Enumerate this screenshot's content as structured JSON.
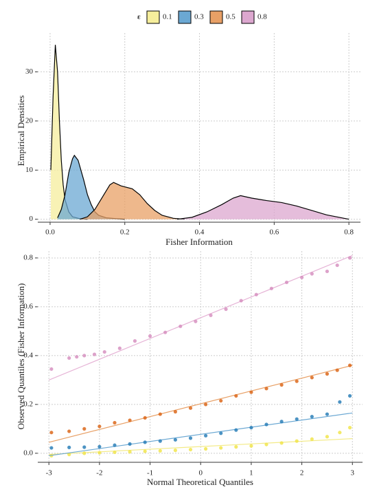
{
  "chart_data": [
    {
      "type": "density",
      "legend_title": "ε",
      "x_label": "Fisher Information",
      "y_label": "Empirical Densities",
      "xlim": [
        -0.033,
        0.831
      ],
      "ylim": [
        -0.6,
        37.9
      ],
      "xticks": [
        {
          "value": 0,
          "label": "0.0"
        },
        0.2,
        0.4,
        0.6,
        0.8
      ],
      "yticks": [
        0,
        10,
        20,
        30
      ],
      "grid": true,
      "series": [
        {
          "name": "0.1",
          "color": "#f6ee9c",
          "x": [
            0.002,
            0.008,
            0.014,
            0.02,
            0.025,
            0.03,
            0.035,
            0.04,
            0.05,
            0.06,
            0.08,
            0.1
          ],
          "values": [
            10,
            25,
            35.5,
            30,
            20,
            12,
            7,
            4,
            1.5,
            0.5,
            0.1,
            0
          ]
        },
        {
          "name": "0.3",
          "color": "#6ba8d3",
          "x": [
            0.02,
            0.03,
            0.04,
            0.05,
            0.06,
            0.065,
            0.075,
            0.09,
            0.1,
            0.11,
            0.12,
            0.13,
            0.15,
            0.18,
            0.2
          ],
          "values": [
            0.3,
            2,
            5,
            9.5,
            12.3,
            13,
            12,
            8,
            5,
            3,
            1.5,
            0.8,
            0.3,
            0.1,
            0
          ]
        },
        {
          "name": "0.5",
          "color": "#e8a066",
          "x": [
            0.08,
            0.1,
            0.12,
            0.14,
            0.16,
            0.17,
            0.19,
            0.22,
            0.24,
            0.26,
            0.28,
            0.3,
            0.33,
            0.36
          ],
          "values": [
            0,
            0.5,
            2,
            4.5,
            7,
            7.5,
            6.8,
            6.2,
            5,
            3.2,
            1.8,
            0.8,
            0.2,
            0
          ]
        },
        {
          "name": "0.8",
          "color": "#dca7cf",
          "x": [
            0.34,
            0.38,
            0.42,
            0.46,
            0.49,
            0.51,
            0.54,
            0.58,
            0.62,
            0.66,
            0.7,
            0.74,
            0.78,
            0.8
          ],
          "values": [
            0,
            0.4,
            1.5,
            3,
            4.3,
            4.8,
            4.3,
            3.8,
            3.4,
            2.7,
            1.8,
            0.9,
            0.3,
            0
          ]
        }
      ]
    },
    {
      "type": "qq",
      "x_label": "Normal Theoretical Quantiles",
      "y_label": "Observed Quantiles (Fisher Information)",
      "xlim": [
        -3.22,
        3.2
      ],
      "ylim": [
        -0.037,
        0.828
      ],
      "xticks": [
        -3,
        -2,
        -1,
        0,
        1,
        2,
        3
      ],
      "yticks": [
        {
          "value": 0,
          "label": "0.0"
        },
        0.2,
        0.4,
        0.6,
        0.8
      ],
      "grid": true,
      "series": [
        {
          "color": "#f0e442",
          "fit_color": "#f3ea86",
          "fit_x": [
            -3,
            3
          ],
          "fit": [
            -0.005,
            0.06
          ],
          "x": [
            -2.95,
            -2.6,
            -2.3,
            -2.0,
            -1.7,
            -1.4,
            -1.1,
            -0.8,
            -0.5,
            -0.2,
            0.1,
            0.4,
            0.7,
            1.0,
            1.3,
            1.6,
            1.9,
            2.2,
            2.5,
            2.75,
            2.95
          ],
          "values": [
            -0.01,
            -0.005,
            0.0,
            0.002,
            0.004,
            0.006,
            0.008,
            0.01,
            0.012,
            0.015,
            0.018,
            0.022,
            0.026,
            0.03,
            0.036,
            0.042,
            0.05,
            0.058,
            0.068,
            0.085,
            0.105
          ]
        },
        {
          "color": "#1f78b4",
          "fit_color": "#6ba8d3",
          "fit_x": [
            -3,
            3
          ],
          "fit": [
            -0.01,
            0.165
          ],
          "x": [
            -2.95,
            -2.6,
            -2.3,
            -2.0,
            -1.7,
            -1.4,
            -1.1,
            -0.8,
            -0.5,
            -0.2,
            0.1,
            0.4,
            0.7,
            1.0,
            1.3,
            1.6,
            1.9,
            2.2,
            2.5,
            2.75,
            2.95
          ],
          "values": [
            0.022,
            0.024,
            0.025,
            0.027,
            0.033,
            0.038,
            0.045,
            0.05,
            0.055,
            0.062,
            0.072,
            0.082,
            0.095,
            0.105,
            0.118,
            0.13,
            0.14,
            0.15,
            0.16,
            0.21,
            0.235
          ]
        },
        {
          "color": "#d95f0e",
          "fit_color": "#e8a066",
          "fit_x": [
            -3,
            3
          ],
          "fit": [
            0.045,
            0.36
          ],
          "x": [
            -2.95,
            -2.6,
            -2.3,
            -2.0,
            -1.7,
            -1.4,
            -1.1,
            -0.8,
            -0.5,
            -0.2,
            0.1,
            0.4,
            0.7,
            1.0,
            1.3,
            1.6,
            1.9,
            2.2,
            2.5,
            2.7,
            2.95
          ],
          "values": [
            0.085,
            0.09,
            0.1,
            0.11,
            0.125,
            0.135,
            0.145,
            0.16,
            0.17,
            0.185,
            0.2,
            0.215,
            0.235,
            0.25,
            0.265,
            0.28,
            0.295,
            0.31,
            0.325,
            0.34,
            0.36
          ]
        },
        {
          "color": "#d48bbd",
          "fit_color": "#e6b3d6",
          "fit_x": [
            -3,
            3
          ],
          "fit": [
            0.3,
            0.81
          ],
          "x": [
            -2.95,
            -2.6,
            -2.45,
            -2.3,
            -2.1,
            -1.9,
            -1.6,
            -1.3,
            -1.0,
            -0.7,
            -0.4,
            -0.1,
            0.2,
            0.5,
            0.8,
            1.1,
            1.4,
            1.7,
            2.0,
            2.2,
            2.5,
            2.7,
            2.95
          ],
          "values": [
            0.345,
            0.39,
            0.395,
            0.4,
            0.405,
            0.415,
            0.43,
            0.46,
            0.48,
            0.495,
            0.52,
            0.54,
            0.565,
            0.59,
            0.625,
            0.65,
            0.675,
            0.7,
            0.72,
            0.735,
            0.745,
            0.77,
            0.8
          ]
        }
      ]
    }
  ]
}
